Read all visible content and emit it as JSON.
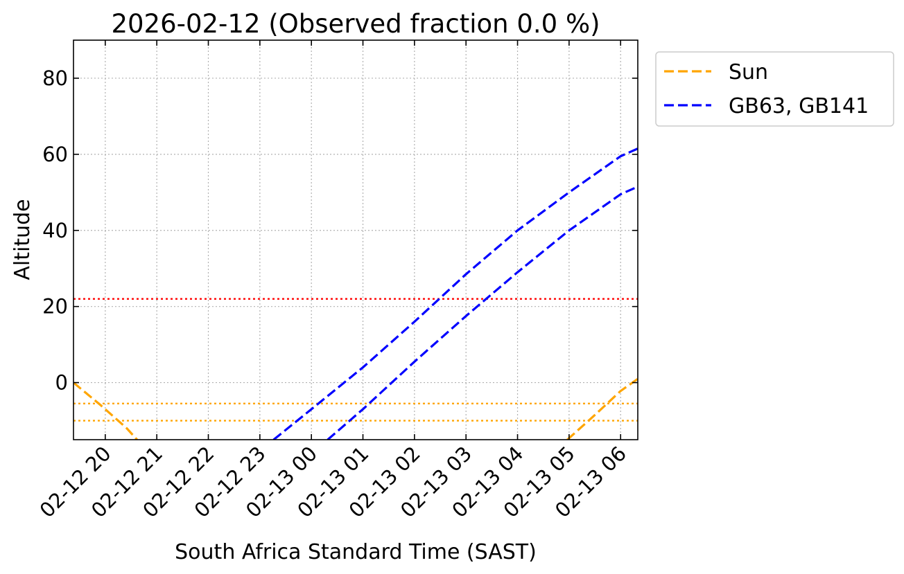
{
  "chart_data": {
    "type": "line",
    "title": "2026-02-12 (Observed fraction 0.0 %)",
    "xlabel": "South Africa Standard Time (SAST)",
    "ylabel": "Altitude",
    "xlim": [
      "2026-02-12 19:23",
      "2026-02-13 06:20"
    ],
    "ylim": [
      -15,
      90
    ],
    "x_ticks": [
      {
        "value": "2026-02-12 20:00",
        "label": "02-12 20"
      },
      {
        "value": "2026-02-12 21:00",
        "label": "02-12 21"
      },
      {
        "value": "2026-02-12 22:00",
        "label": "02-12 22"
      },
      {
        "value": "2026-02-12 23:00",
        "label": "02-12 23"
      },
      {
        "value": "2026-02-13 00:00",
        "label": "02-13 00"
      },
      {
        "value": "2026-02-13 01:00",
        "label": "02-13 01"
      },
      {
        "value": "2026-02-13 02:00",
        "label": "02-13 02"
      },
      {
        "value": "2026-02-13 03:00",
        "label": "02-13 03"
      },
      {
        "value": "2026-02-13 04:00",
        "label": "02-13 04"
      },
      {
        "value": "2026-02-13 05:00",
        "label": "02-13 05"
      },
      {
        "value": "2026-02-13 06:00",
        "label": "02-13 06"
      }
    ],
    "y_ticks": [
      0,
      20,
      40,
      60,
      80
    ],
    "grid": true,
    "legend_position": "outside-top-right",
    "series": [
      {
        "name": "Sun",
        "legend_label": "Sun",
        "color": "#ffa500",
        "linestyle": "dashed",
        "points": [
          [
            "2026-02-12 19:23",
            0
          ],
          [
            "2026-02-12 19:55",
            -6
          ],
          [
            "2026-02-12 20:00",
            -7
          ],
          [
            "2026-02-12 20:25",
            -12
          ],
          [
            "2026-02-12 20:37",
            -15
          ]
        ]
      },
      {
        "name": "Sun",
        "color": "#ffa500",
        "linestyle": "dashed",
        "points": [
          [
            "2026-02-13 04:58",
            -15
          ],
          [
            "2026-02-13 05:30",
            -8.5
          ],
          [
            "2026-02-13 06:00",
            -2.2
          ],
          [
            "2026-02-13 06:20",
            1
          ]
        ]
      },
      {
        "name": "GB63",
        "legend_label": "GB63, GB141",
        "color": "#0000ff",
        "linestyle": "dashed",
        "points": [
          [
            "2026-02-12 23:16",
            -15
          ],
          [
            "2026-02-13 00:00",
            -7
          ],
          [
            "2026-02-13 01:00",
            4
          ],
          [
            "2026-02-13 02:00",
            16
          ],
          [
            "2026-02-13 03:00",
            28.5
          ],
          [
            "2026-02-13 04:00",
            40
          ],
          [
            "2026-02-13 05:00",
            50
          ],
          [
            "2026-02-13 06:00",
            59.5
          ],
          [
            "2026-02-13 06:20",
            61.5
          ]
        ]
      },
      {
        "name": "GB141",
        "color": "#0000ff",
        "linestyle": "dashed",
        "points": [
          [
            "2026-02-13 00:19",
            -15
          ],
          [
            "2026-02-13 01:00",
            -7
          ],
          [
            "2026-02-13 02:00",
            5.5
          ],
          [
            "2026-02-13 03:00",
            17.5
          ],
          [
            "2026-02-13 04:00",
            29
          ],
          [
            "2026-02-13 05:00",
            40
          ],
          [
            "2026-02-13 06:00",
            49.5
          ],
          [
            "2026-02-13 06:20",
            51.5
          ]
        ]
      }
    ],
    "reference_lines": [
      {
        "y": 22,
        "color": "#ff0000",
        "linestyle": "dotted"
      },
      {
        "y": -5.5,
        "color": "#ffa500",
        "linestyle": "dotted"
      },
      {
        "y": -10,
        "color": "#ffa500",
        "linestyle": "dotted"
      }
    ]
  }
}
